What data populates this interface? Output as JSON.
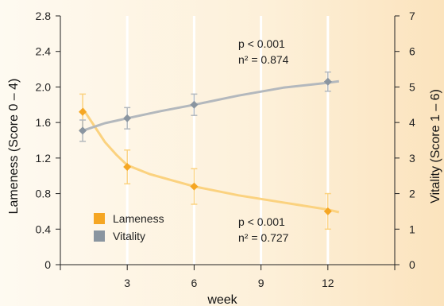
{
  "chart_data": {
    "type": "line",
    "x": [
      1,
      3,
      6,
      12
    ],
    "xlim": [
      0,
      15
    ],
    "xticks": [
      3,
      6,
      9,
      12
    ],
    "xlabel": "week",
    "ylabel_left": "Lameness (Score 0 – 4)",
    "ylabel_right": "Vitality (Score 1 – 6)",
    "ylim_left": [
      0,
      2.8
    ],
    "yticks_left": [
      "0",
      "0.4",
      "0.8",
      "1.2",
      "1.6",
      "2.0",
      "2.4",
      "2.8"
    ],
    "ylim_right": [
      0,
      7
    ],
    "yticks_right": [
      "0",
      "1",
      "2",
      "3",
      "4",
      "5",
      "6",
      "7"
    ],
    "series": [
      {
        "name": "Lameness",
        "axis": "left",
        "color": "#f5a623",
        "line_color": "#fbd27f",
        "values": [
          1.72,
          1.1,
          0.88,
          0.6
        ],
        "errors": [
          0.2,
          0.19,
          0.2,
          0.2
        ],
        "fit_curve": [
          [
            1,
            1.76
          ],
          [
            1.5,
            1.57
          ],
          [
            2,
            1.38
          ],
          [
            2.5,
            1.24
          ],
          [
            3,
            1.12
          ],
          [
            4,
            1.02
          ],
          [
            5,
            0.95
          ],
          [
            6,
            0.88
          ],
          [
            8,
            0.78
          ],
          [
            10,
            0.7
          ],
          [
            12,
            0.62
          ],
          [
            12.5,
            0.59
          ]
        ]
      },
      {
        "name": "Vitality",
        "axis": "right",
        "color": "#8a95a0",
        "line_color": "#b3b8bd",
        "values": [
          3.77,
          4.12,
          4.5,
          5.15
        ],
        "errors": [
          0.3,
          0.3,
          0.3,
          0.27
        ],
        "fit_curve": [
          [
            1,
            3.77
          ],
          [
            2,
            3.98
          ],
          [
            3,
            4.12
          ],
          [
            4.5,
            4.32
          ],
          [
            6,
            4.5
          ],
          [
            8,
            4.76
          ],
          [
            10,
            4.98
          ],
          [
            12,
            5.12
          ],
          [
            12.5,
            5.16
          ]
        ]
      }
    ],
    "annotations": [
      {
        "id": "vitality",
        "line1": "p < 0.001",
        "line2": "n² = 0.874"
      },
      {
        "id": "lameness",
        "line1": "p < 0.001",
        "line2": "n² = 0.727"
      }
    ]
  }
}
